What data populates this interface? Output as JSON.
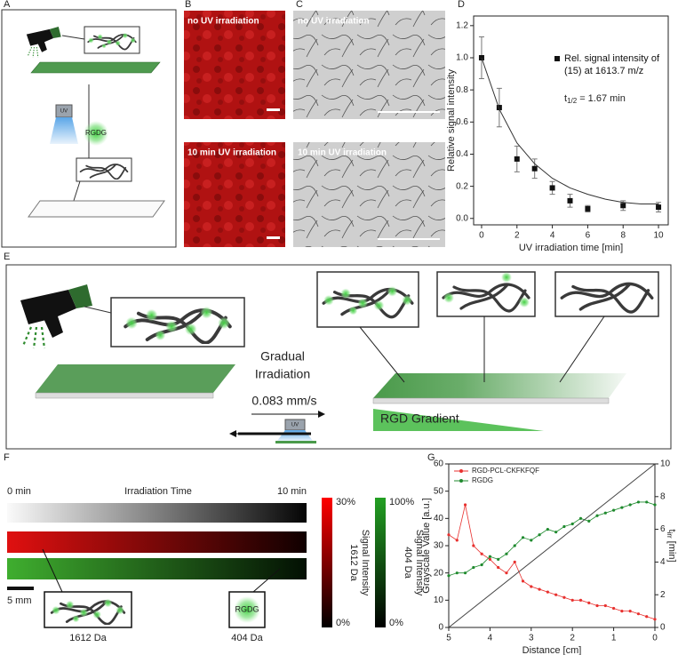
{
  "panels": {
    "a": "A",
    "b": "B",
    "c": "C",
    "d": "D",
    "e": "E",
    "f": "F",
    "g": "G"
  },
  "panel_a": {
    "uv": "UV",
    "compound": "RGDG"
  },
  "panel_b": {
    "top": "no UV irradiation",
    "bottom": "10 min UV irradiation"
  },
  "panel_c": {
    "top": "no UV irradiation",
    "bottom": "10 min UV irradiation"
  },
  "panel_e": {
    "step": [
      "Gradual",
      "Irradiation"
    ],
    "speed": "0.083 mm/s",
    "uv": "UV",
    "gradient": "RGD Gradient"
  },
  "panel_f": {
    "start": "0 min",
    "axis": "Irradiation Time",
    "end": "10 min",
    "scale": "5 mm",
    "left_mass": "1612 Da",
    "right_mass": "404 Da",
    "compound": "RGDG",
    "red_bar": {
      "top": "30%",
      "bottom": "0%",
      "label": [
        "1612 Da",
        "Signal Intensity"
      ]
    },
    "green_bar": {
      "top": "100%",
      "bottom": "0%",
      "label": [
        "404 Da",
        "Signal Intensity"
      ]
    }
  },
  "chart_data": [
    {
      "type": "scatter",
      "y_label": "Relative signal intensity",
      "x_label": "UV irradiation time [min]",
      "xlim": [
        -0.45,
        10.55
      ],
      "xticks": [
        0,
        2,
        4,
        6,
        8,
        10
      ],
      "ylim": [
        -0.04,
        1.26
      ],
      "yticks": [
        {
          "value": 0,
          "label": "0.0"
        },
        {
          "value": 0.2,
          "label": "0.2"
        },
        {
          "value": 0.4,
          "label": "0.4"
        },
        {
          "value": 0.6,
          "label": "0.6"
        },
        {
          "value": 0.8,
          "label": "0.8"
        },
        {
          "value": 1,
          "label": "1.0"
        },
        {
          "value": 1.2,
          "label": "1.2"
        }
      ],
      "legend": "upper right",
      "annotation": [
        "t",
        "1/2",
        "= 1.67 min"
      ],
      "series": [
        {
          "name": "Rel. signal intensity of (15) at 1613.7 m/z",
          "color": "#111111",
          "marker": "square",
          "line": false,
          "x": [
            0,
            1,
            2,
            3,
            4,
            5,
            6,
            8,
            10
          ],
          "values": [
            1.0,
            0.69,
            0.37,
            0.31,
            0.19,
            0.11,
            0.06,
            0.08,
            0.07
          ],
          "errors": [
            0.13,
            0.12,
            0.08,
            0.06,
            0.04,
            0.04,
            0.02,
            0.03,
            0.03
          ]
        },
        {
          "color": "#333333",
          "marker": "none",
          "line": true,
          "x": [
            0,
            1,
            2,
            3,
            4,
            5,
            6,
            7,
            8,
            9,
            10
          ],
          "values": [
            1.0,
            0.68,
            0.47,
            0.34,
            0.25,
            0.19,
            0.15,
            0.12,
            0.1,
            0.09,
            0.09
          ]
        }
      ]
    },
    {
      "type": "line",
      "y_label": "Grayscale Value [a.u.]",
      "x_label": "Distance [cm]",
      "y2_label": [
        "t",
        "irr",
        "[min]"
      ],
      "xlim": [
        5,
        0
      ],
      "xticks": [
        5,
        4,
        3,
        2,
        1,
        0
      ],
      "ylim": [
        0,
        60
      ],
      "yticks": [
        0,
        10,
        20,
        30,
        40,
        50,
        60
      ],
      "y2lim": [
        0,
        10
      ],
      "y2ticks": [
        0,
        2,
        4,
        6,
        8,
        10
      ],
      "legend": "upper left",
      "series": [
        {
          "name": "RGD-PCL-CKFKFQF",
          "color": "#e8312f",
          "marker": "circle",
          "line": true,
          "x": [
            5,
            4.8,
            4.6,
            4.4,
            4.2,
            4,
            3.8,
            3.6,
            3.4,
            3.2,
            3,
            2.8,
            2.6,
            2.4,
            2.2,
            2,
            1.8,
            1.6,
            1.4,
            1.2,
            1,
            0.8,
            0.6,
            0.4,
            0.2,
            0
          ],
          "values": [
            34,
            32,
            45,
            30,
            27,
            25,
            22,
            20,
            24,
            17,
            15,
            14,
            13,
            12,
            11,
            10,
            10,
            9,
            8,
            8,
            7,
            6,
            6,
            5,
            4,
            3
          ]
        },
        {
          "name": "RGDG",
          "color": "#1f8a2e",
          "marker": "circle",
          "line": true,
          "x": [
            5,
            4.8,
            4.6,
            4.4,
            4.2,
            4,
            3.8,
            3.6,
            3.4,
            3.2,
            3,
            2.8,
            2.6,
            2.4,
            2.2,
            2,
            1.8,
            1.6,
            1.4,
            1.2,
            1,
            0.8,
            0.6,
            0.4,
            0.2,
            0
          ],
          "values": [
            19,
            20,
            20,
            22,
            23,
            26,
            25,
            27,
            30,
            33,
            32,
            34,
            36,
            35,
            37,
            38,
            40,
            39,
            41,
            42,
            43,
            44,
            45,
            46,
            46,
            45
          ]
        },
        {
          "color": "#444444",
          "marker": "none",
          "line": true,
          "axis": "y2",
          "x": [
            5,
            0
          ],
          "values": [
            0,
            10
          ]
        }
      ]
    }
  ]
}
